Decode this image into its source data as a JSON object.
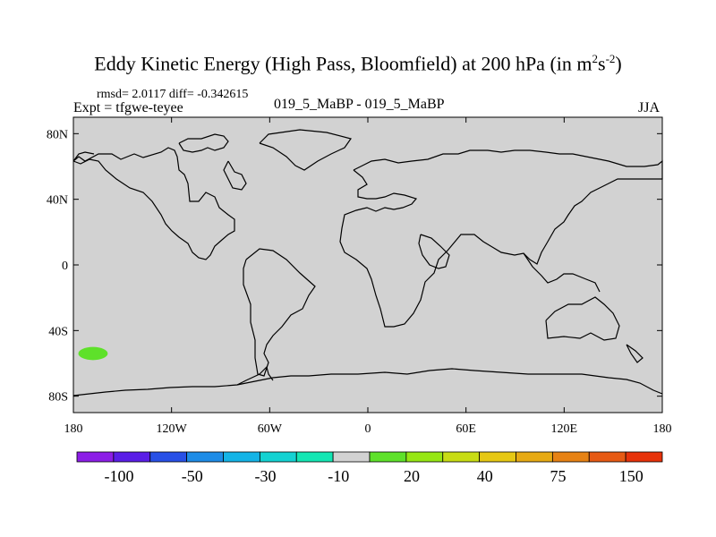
{
  "title": {
    "main": "Eddy Kinetic Energy (High Pass, Bloomfield) at 200 hPa (in m",
    "sup1": "2",
    "mid": "s",
    "sup2": "-2",
    "end": ")"
  },
  "stats": "rmsd= 2.0117 diff= -0.342615",
  "expt": "Expt = tfgwe-teyee",
  "diff_label": "019_5_MaBP - 019_5_MaBP",
  "season": "JJA",
  "colors": {
    "field": "#d2d2d2",
    "coast": "#000000",
    "anomaly": "#5ee12a"
  },
  "chart_data": {
    "type": "heatmap",
    "projection": "cylindrical equidistant",
    "xlim": [
      -180,
      180
    ],
    "ylim": [
      -90,
      90
    ],
    "x_ticks": [
      {
        "value": -180,
        "label": "180"
      },
      {
        "value": -120,
        "label": "120W"
      },
      {
        "value": -60,
        "label": "60W"
      },
      {
        "value": 0,
        "label": "0"
      },
      {
        "value": 60,
        "label": "60E"
      },
      {
        "value": 120,
        "label": "120E"
      },
      {
        "value": 180,
        "label": "180"
      }
    ],
    "y_ticks": [
      {
        "value": 80,
        "label": "80N"
      },
      {
        "value": 40,
        "label": "40N"
      },
      {
        "value": 0,
        "label": "0"
      },
      {
        "value": -40,
        "label": "40S"
      },
      {
        "value": -80,
        "label": "80S"
      }
    ],
    "background_value_range": [
      -10,
      10
    ],
    "regions": [
      {
        "name": "positive anomaly (10 to 20)",
        "lon": -168,
        "lat": -54,
        "lon_halfwidth": 9,
        "lat_halfwidth": 4,
        "color": "#5ee12a"
      }
    ],
    "colorbar": {
      "colors": [
        "#8c1ee6",
        "#5a1ee6",
        "#2850e6",
        "#1e8ce6",
        "#14b4e6",
        "#14d2d2",
        "#14e6b4",
        "#d2d2d2",
        "#5ee12a",
        "#96e614",
        "#c8dc14",
        "#e6c814",
        "#e6aa14",
        "#e68214",
        "#e65a14",
        "#e6320a"
      ],
      "labels": [
        {
          "after_box": 2,
          "text": "-100"
        },
        {
          "after_box": 4,
          "text": "-50"
        },
        {
          "after_box": 6,
          "text": "-30"
        },
        {
          "after_box": 8,
          "text": "-10"
        },
        {
          "after_box": 10,
          "text": "20"
        },
        {
          "after_box": 12,
          "text": "40"
        },
        {
          "after_box": 14,
          "text": "75"
        },
        {
          "after_box": 16,
          "text": "150"
        }
      ]
    }
  }
}
